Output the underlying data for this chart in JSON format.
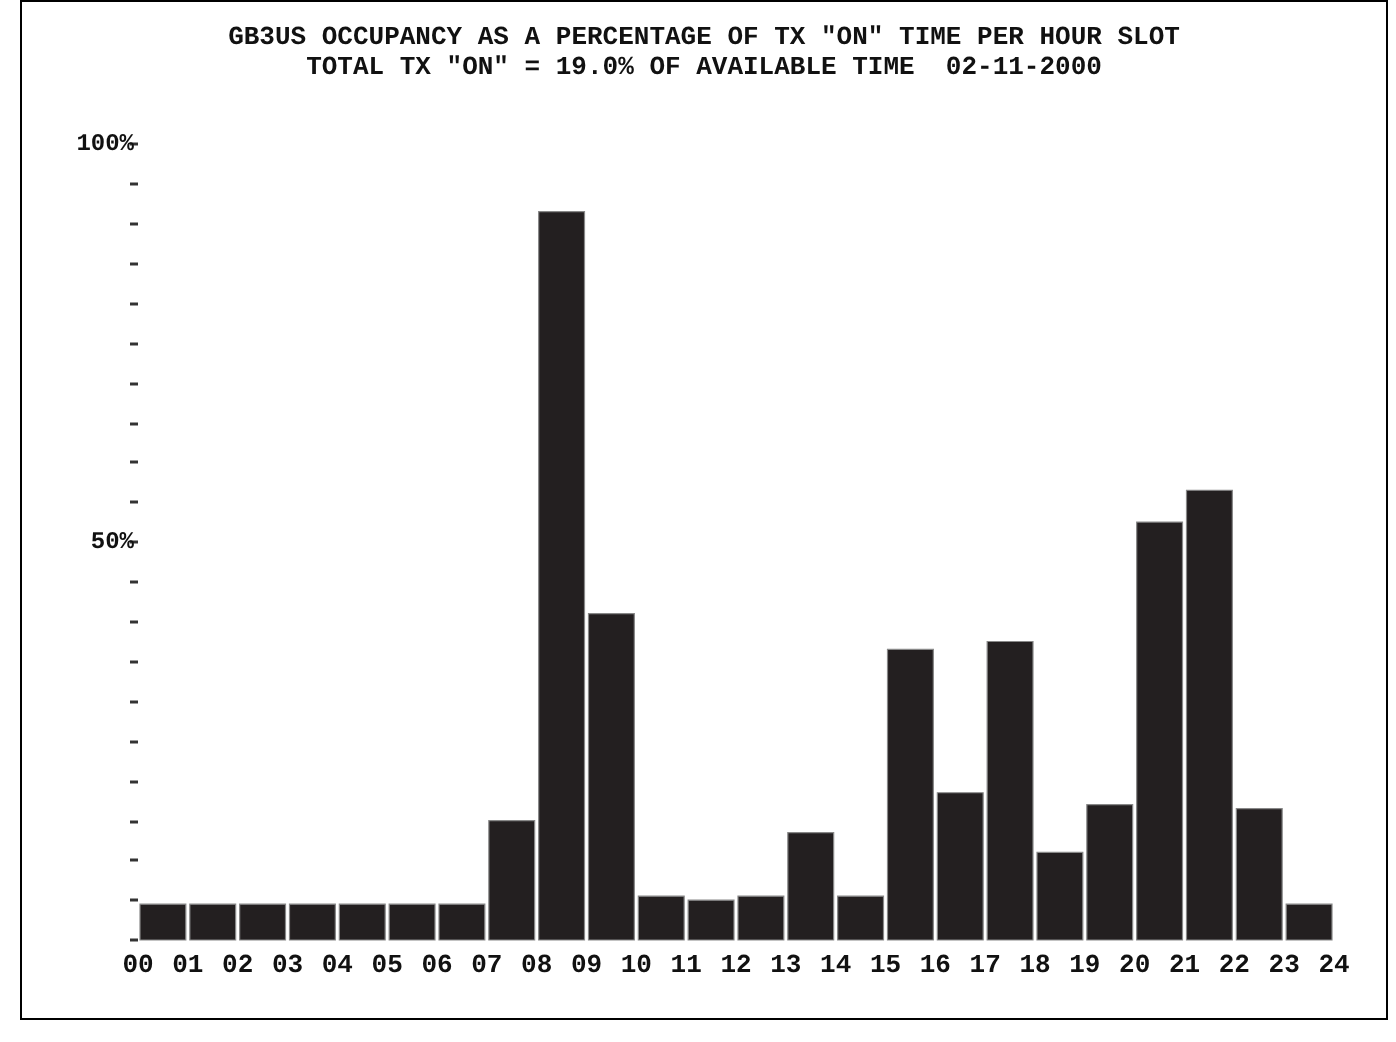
{
  "chart_data": {
    "type": "histogram",
    "title": "GB3US OCCUPANCY AS A PERCENTAGE OF TX \"ON\" TIME PER HOUR SLOT",
    "subtitle": "TOTAL TX \"ON\" = 19.0% OF AVAILABLE TIME  02-11-2000",
    "bins": [
      0,
      1,
      2,
      3,
      4,
      5,
      6,
      7,
      8,
      9,
      10,
      11,
      12,
      13,
      14,
      15,
      16,
      17,
      18,
      19,
      20,
      21,
      22,
      23,
      24
    ],
    "values": [
      4.5,
      4.5,
      4.5,
      4.5,
      4.5,
      4.5,
      4.5,
      15,
      91.5,
      41,
      5.5,
      5,
      5.5,
      13.5,
      5.5,
      36.5,
      18.5,
      37.5,
      11,
      17,
      52.5,
      56.5,
      16.5,
      4.5
    ],
    "color": "#231f20",
    "xlim": [
      0,
      24
    ],
    "xticks": [
      {
        "value": 0,
        "label": "00"
      },
      {
        "value": 1,
        "label": "01"
      },
      {
        "value": 2,
        "label": "02"
      },
      {
        "value": 3,
        "label": "03"
      },
      {
        "value": 4,
        "label": "04"
      },
      {
        "value": 5,
        "label": "05"
      },
      {
        "value": 6,
        "label": "06"
      },
      {
        "value": 7,
        "label": "07"
      },
      {
        "value": 8,
        "label": "08"
      },
      {
        "value": 9,
        "label": "09"
      },
      {
        "value": 10,
        "label": "10"
      },
      {
        "value": 11,
        "label": "11"
      },
      {
        "value": 12,
        "label": "12"
      },
      {
        "value": 13,
        "label": "13"
      },
      {
        "value": 14,
        "label": "14"
      },
      {
        "value": 15,
        "label": "15"
      },
      {
        "value": 16,
        "label": "16"
      },
      {
        "value": 17,
        "label": "17"
      },
      {
        "value": 18,
        "label": "18"
      },
      {
        "value": 19,
        "label": "19"
      },
      {
        "value": 20,
        "label": "20"
      },
      {
        "value": 21,
        "label": "21"
      },
      {
        "value": 22,
        "label": "22"
      },
      {
        "value": 23,
        "label": "23"
      },
      {
        "value": 24,
        "label": "24"
      }
    ],
    "ylim": [
      0,
      100
    ],
    "yticks": [
      {
        "value": 0,
        "label": null
      },
      {
        "value": 5,
        "label": null
      },
      {
        "value": 10,
        "label": null
      },
      {
        "value": 15,
        "label": null
      },
      {
        "value": 20,
        "label": null
      },
      {
        "value": 25,
        "label": null
      },
      {
        "value": 30,
        "label": null
      },
      {
        "value": 35,
        "label": null
      },
      {
        "value": 40,
        "label": null
      },
      {
        "value": 45,
        "label": null
      },
      {
        "value": 50,
        "label": "50%"
      },
      {
        "value": 55,
        "label": null
      },
      {
        "value": 60,
        "label": null
      },
      {
        "value": 65,
        "label": null
      },
      {
        "value": 70,
        "label": null
      },
      {
        "value": 75,
        "label": null
      },
      {
        "value": 80,
        "label": null
      },
      {
        "value": 85,
        "label": null
      },
      {
        "value": 90,
        "label": null
      },
      {
        "value": 95,
        "label": null
      },
      {
        "value": 100,
        "label": "100%"
      }
    ],
    "grid": false
  }
}
